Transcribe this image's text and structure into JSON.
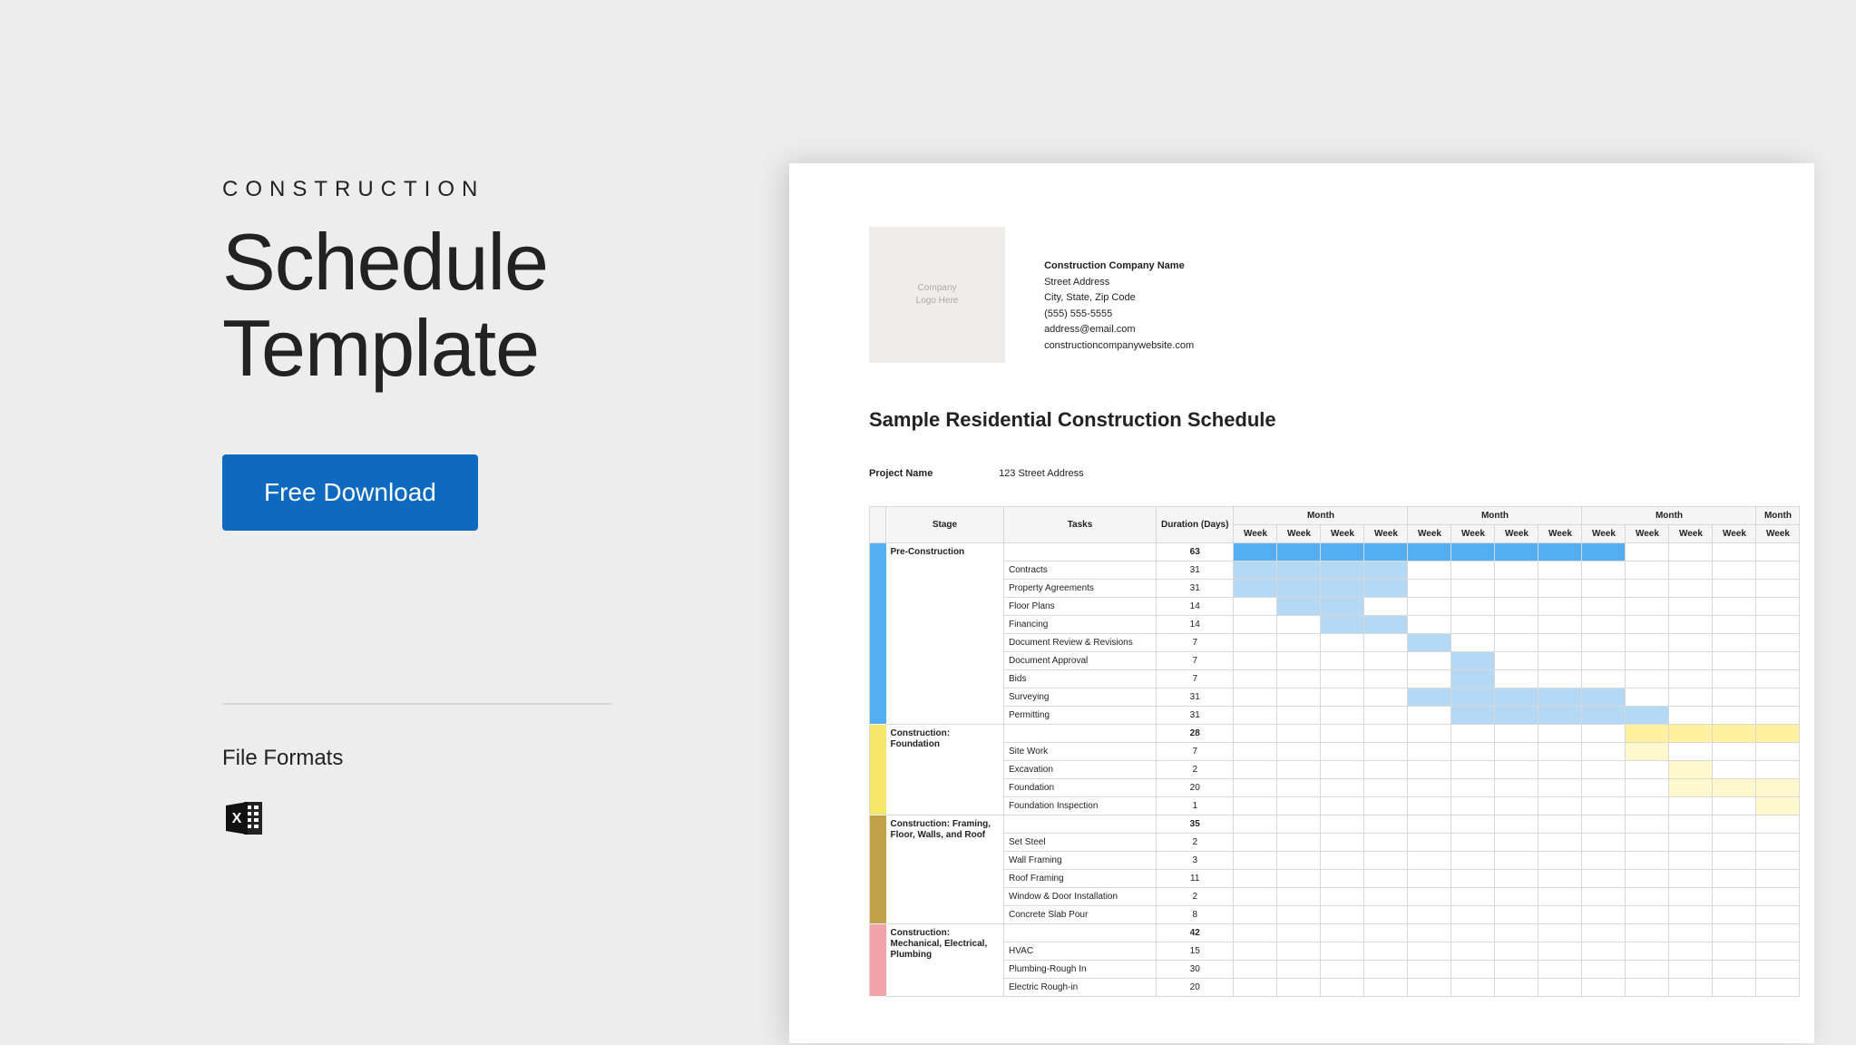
{
  "left": {
    "eyebrow": "CONSTRUCTION",
    "title": "Schedule Template",
    "download_label": "Free Download",
    "file_formats_label": "File Formats"
  },
  "colors": {
    "page_bg": "#ededed",
    "button_bg": "#0d6abf",
    "button_text": "#ffffff",
    "divider": "#d7d7d7"
  },
  "doc": {
    "logo_placeholder": "Company\nLogo Here",
    "company": {
      "name": "Construction Company Name",
      "street": "Street Address",
      "city": "City, State, Zip Code",
      "phone": "(555) 555-5555",
      "email": "address@email.com",
      "web": "constructioncompanywebsite.com"
    },
    "title": "Sample Residential Construction Schedule",
    "project_name_label": "Project Name",
    "project_name_value": "123 Street Address",
    "headers": {
      "stage": "Stage",
      "tasks": "Tasks",
      "duration": "Duration (Days)",
      "month": "Month",
      "week": "Week"
    },
    "week_cols": 13,
    "month_span": 4,
    "month_remainder": 1,
    "stage_colors": {
      "pre": {
        "band": "#55aef2",
        "fill": "#55aef2",
        "light": "#b4d9f7"
      },
      "foundation": {
        "band": "#f5e66b",
        "fill": "#fff1a0",
        "light": "#fff8cc"
      },
      "framing": {
        "band": "#c1a24a",
        "fill": "#e4d29a",
        "light": "#f1e8ca"
      },
      "mep": {
        "band": "#f2a3a8",
        "fill": "#f8c9cc",
        "light": "#fbe3e5"
      }
    },
    "stages": [
      {
        "key": "pre",
        "name": "Pre-Construction",
        "duration": 63,
        "head_bars": [
          {
            "start": 0,
            "len": 9,
            "shade": "fill"
          }
        ],
        "tasks": [
          {
            "name": "Contracts",
            "dur": 31,
            "bars": [
              {
                "start": 0,
                "len": 4,
                "shade": "light"
              }
            ]
          },
          {
            "name": "Property Agreements",
            "dur": 31,
            "bars": [
              {
                "start": 0,
                "len": 4,
                "shade": "light"
              }
            ]
          },
          {
            "name": "Floor Plans",
            "dur": 14,
            "bars": [
              {
                "start": 1,
                "len": 2,
                "shade": "light"
              }
            ]
          },
          {
            "name": "Financing",
            "dur": 14,
            "bars": [
              {
                "start": 2,
                "len": 2,
                "shade": "light"
              }
            ]
          },
          {
            "name": "Document Review & Revisions",
            "dur": 7,
            "bars": [
              {
                "start": 4,
                "len": 1,
                "shade": "light"
              }
            ]
          },
          {
            "name": "Document Approval",
            "dur": 7,
            "bars": [
              {
                "start": 5,
                "len": 1,
                "shade": "light"
              }
            ]
          },
          {
            "name": "Bids",
            "dur": 7,
            "bars": [
              {
                "start": 5,
                "len": 1,
                "shade": "light"
              }
            ]
          },
          {
            "name": "Surveying",
            "dur": 31,
            "bars": [
              {
                "start": 4,
                "len": 5,
                "shade": "light"
              }
            ]
          },
          {
            "name": "Permitting",
            "dur": 31,
            "bars": [
              {
                "start": 5,
                "len": 5,
                "shade": "light"
              }
            ]
          }
        ]
      },
      {
        "key": "foundation",
        "name": "Construction: Foundation",
        "duration": 28,
        "head_bars": [
          {
            "start": 9,
            "len": 4,
            "shade": "fill"
          }
        ],
        "tasks": [
          {
            "name": "Site Work",
            "dur": 7,
            "bars": [
              {
                "start": 9,
                "len": 1,
                "shade": "light"
              }
            ]
          },
          {
            "name": "Excavation",
            "dur": 2,
            "bars": [
              {
                "start": 10,
                "len": 1,
                "shade": "light"
              }
            ]
          },
          {
            "name": "Foundation",
            "dur": 20,
            "bars": [
              {
                "start": 10,
                "len": 3,
                "shade": "light"
              }
            ]
          },
          {
            "name": "Foundation Inspection",
            "dur": 1,
            "bars": [
              {
                "start": 12,
                "len": 1,
                "shade": "light"
              }
            ]
          }
        ]
      },
      {
        "key": "framing",
        "name": "Construction: Framing, Floor, Walls, and Roof",
        "duration": 35,
        "head_bars": [],
        "tasks": [
          {
            "name": "Set Steel",
            "dur": 2,
            "bars": []
          },
          {
            "name": "Wall Framing",
            "dur": 3,
            "bars": []
          },
          {
            "name": "Roof Framing",
            "dur": 11,
            "bars": []
          },
          {
            "name": "Window & Door Installation",
            "dur": 2,
            "bars": []
          },
          {
            "name": "Concrete Slab Pour",
            "dur": 8,
            "bars": []
          }
        ]
      },
      {
        "key": "mep",
        "name": "Construction: Mechanical, Electrical, Plumbing",
        "duration": 42,
        "head_bars": [],
        "tasks": [
          {
            "name": "HVAC",
            "dur": 15,
            "bars": []
          },
          {
            "name": "Plumbing-Rough In",
            "dur": 30,
            "bars": []
          },
          {
            "name": "Electric Rough-in",
            "dur": 20,
            "bars": []
          }
        ]
      }
    ]
  }
}
